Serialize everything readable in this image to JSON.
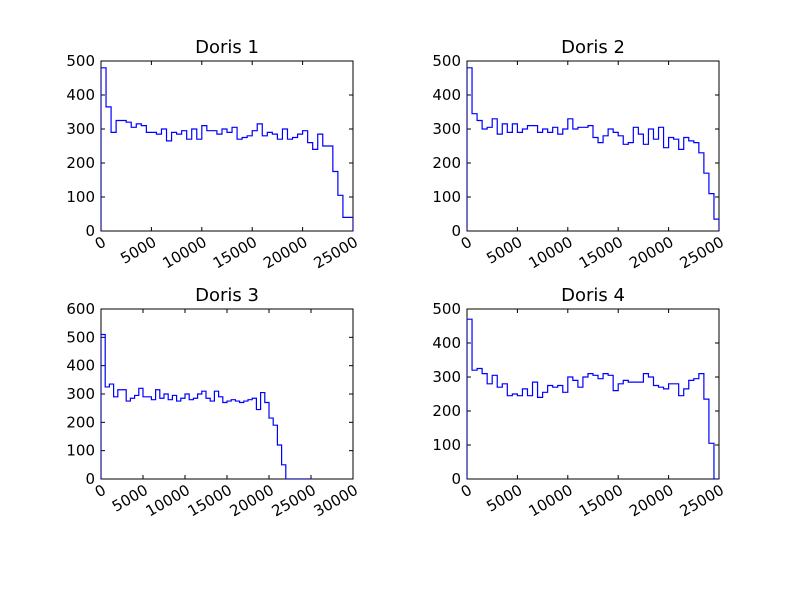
{
  "chart_data": [
    {
      "type": "line",
      "step": true,
      "title": "Doris 1",
      "xlabel": "",
      "ylabel": "",
      "xlim": [
        0,
        25000
      ],
      "ylim": [
        0,
        500
      ],
      "xticks": [
        "0",
        "5000",
        "10000",
        "15000",
        "20000",
        "25000"
      ],
      "yticks": [
        "0",
        "100",
        "200",
        "300",
        "400",
        "500"
      ],
      "series": [
        {
          "color": "#0000ff",
          "x": [
            0,
            500,
            1000,
            1500,
            2000,
            2500,
            3000,
            3500,
            4000,
            4500,
            5000,
            5500,
            6000,
            6500,
            7000,
            7500,
            8000,
            8500,
            9000,
            9500,
            10000,
            10500,
            11000,
            11500,
            12000,
            12500,
            13000,
            13500,
            14000,
            14500,
            15000,
            15500,
            16000,
            16500,
            17000,
            17500,
            18000,
            18500,
            19000,
            19500,
            20000,
            20500,
            21000,
            21500,
            22000,
            22500,
            23000,
            23500,
            24000,
            24500
          ],
          "y": [
            480,
            365,
            290,
            325,
            325,
            320,
            305,
            315,
            310,
            290,
            290,
            285,
            300,
            265,
            290,
            285,
            295,
            270,
            300,
            270,
            310,
            295,
            295,
            285,
            300,
            290,
            305,
            270,
            275,
            280,
            295,
            315,
            280,
            290,
            285,
            270,
            300,
            270,
            275,
            285,
            295,
            260,
            240,
            285,
            250,
            250,
            175,
            105,
            40,
            40
          ]
        }
      ]
    },
    {
      "type": "line",
      "step": true,
      "title": "Doris 2",
      "xlabel": "",
      "ylabel": "",
      "xlim": [
        0,
        25000
      ],
      "ylim": [
        0,
        500
      ],
      "xticks": [
        "0",
        "5000",
        "10000",
        "15000",
        "20000",
        "25000"
      ],
      "yticks": [
        "0",
        "100",
        "200",
        "300",
        "400",
        "500"
      ],
      "series": [
        {
          "color": "#0000ff",
          "x": [
            0,
            500,
            1000,
            1500,
            2000,
            2500,
            3000,
            3500,
            4000,
            4500,
            5000,
            5500,
            6000,
            6500,
            7000,
            7500,
            8000,
            8500,
            9000,
            9500,
            10000,
            10500,
            11000,
            11500,
            12000,
            12500,
            13000,
            13500,
            14000,
            14500,
            15000,
            15500,
            16000,
            16500,
            17000,
            17500,
            18000,
            18500,
            19000,
            19500,
            20000,
            20500,
            21000,
            21500,
            22000,
            22500,
            23000,
            23500,
            24000,
            24500
          ],
          "y": [
            480,
            345,
            325,
            300,
            305,
            330,
            285,
            315,
            290,
            315,
            290,
            300,
            310,
            310,
            290,
            300,
            290,
            305,
            285,
            300,
            330,
            300,
            305,
            305,
            310,
            275,
            260,
            280,
            300,
            290,
            280,
            255,
            260,
            305,
            285,
            255,
            300,
            270,
            305,
            245,
            275,
            270,
            240,
            275,
            265,
            260,
            230,
            170,
            110,
            35
          ]
        }
      ]
    },
    {
      "type": "line",
      "step": true,
      "title": "Doris 3",
      "xlabel": "",
      "ylabel": "",
      "xlim": [
        0,
        30000
      ],
      "ylim": [
        0,
        600
      ],
      "xticks": [
        "0",
        "5000",
        "10000",
        "15000",
        "20000",
        "25000",
        "30000"
      ],
      "yticks": [
        "0",
        "100",
        "200",
        "300",
        "400",
        "500",
        "600"
      ],
      "series": [
        {
          "color": "#0000ff",
          "x": [
            0,
            500,
            1000,
            1500,
            2000,
            2500,
            3000,
            3500,
            4000,
            4500,
            5000,
            5500,
            6000,
            6500,
            7000,
            7500,
            8000,
            8500,
            9000,
            9500,
            10000,
            10500,
            11000,
            11500,
            12000,
            12500,
            13000,
            13500,
            14000,
            14500,
            15000,
            15500,
            16000,
            16500,
            17000,
            17500,
            18000,
            18500,
            19000,
            19500,
            20000,
            20500,
            21000,
            21500,
            22000,
            22500,
            23000,
            23500,
            24000,
            24500
          ],
          "y": [
            510,
            325,
            335,
            290,
            315,
            315,
            275,
            285,
            295,
            320,
            290,
            290,
            280,
            315,
            285,
            300,
            280,
            295,
            275,
            285,
            300,
            280,
            285,
            300,
            310,
            285,
            275,
            310,
            290,
            270,
            275,
            280,
            275,
            270,
            275,
            280,
            285,
            245,
            305,
            270,
            215,
            190,
            120,
            50,
            0,
            0,
            0,
            0,
            0,
            0
          ]
        }
      ]
    },
    {
      "type": "line",
      "step": true,
      "title": "Doris 4",
      "xlabel": "",
      "ylabel": "",
      "xlim": [
        0,
        25000
      ],
      "ylim": [
        0,
        500
      ],
      "xticks": [
        "0",
        "5000",
        "10000",
        "15000",
        "20000",
        "25000"
      ],
      "yticks": [
        "0",
        "100",
        "200",
        "300",
        "400",
        "500"
      ],
      "series": [
        {
          "color": "#0000ff",
          "x": [
            0,
            500,
            1000,
            1500,
            2000,
            2500,
            3000,
            3500,
            4000,
            4500,
            5000,
            5500,
            6000,
            6500,
            7000,
            7500,
            8000,
            8500,
            9000,
            9500,
            10000,
            10500,
            11000,
            11500,
            12000,
            12500,
            13000,
            13500,
            14000,
            14500,
            15000,
            15500,
            16000,
            16500,
            17000,
            17500,
            18000,
            18500,
            19000,
            19500,
            20000,
            20500,
            21000,
            21500,
            22000,
            22500,
            23000,
            23500,
            24000,
            24500
          ],
          "y": [
            470,
            320,
            325,
            310,
            280,
            305,
            270,
            280,
            245,
            250,
            245,
            265,
            245,
            285,
            240,
            255,
            275,
            270,
            275,
            255,
            300,
            290,
            270,
            300,
            310,
            305,
            295,
            310,
            305,
            260,
            280,
            290,
            285,
            285,
            285,
            310,
            300,
            275,
            270,
            265,
            280,
            280,
            245,
            265,
            290,
            295,
            310,
            235,
            105,
            0
          ]
        }
      ]
    }
  ]
}
